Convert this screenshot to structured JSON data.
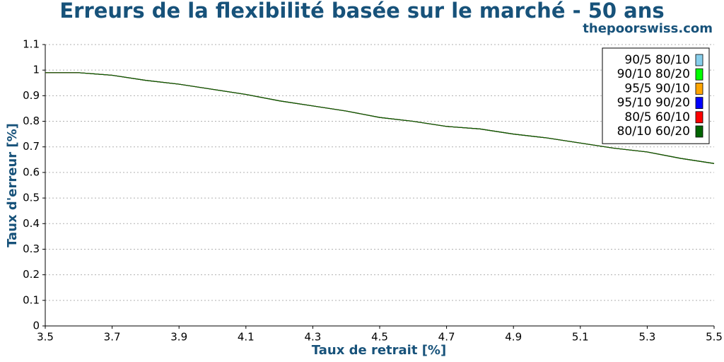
{
  "chart_data": {
    "type": "line",
    "title": "Erreurs de la flexibilité basée sur le marché - 50 ans",
    "subtitle": "thepoorswiss.com",
    "x_label": "Taux de retrait [%]",
    "y_label": "Taux d'erreur [%]",
    "x": [
      3.5,
      3.6,
      3.7,
      3.8,
      3.9,
      4.0,
      4.1,
      4.2,
      4.3,
      4.4,
      4.5,
      4.6,
      4.7,
      4.8,
      4.9,
      5.0,
      5.1,
      5.2,
      5.3,
      5.4,
      5.5
    ],
    "series": [
      {
        "name": "90/5 80/10",
        "color": "#87ceeb",
        "values": [
          0.99,
          0.99,
          0.98,
          0.96,
          0.945,
          0.925,
          0.905,
          0.88,
          0.86,
          0.84,
          0.815,
          0.8,
          0.78,
          0.77,
          0.75,
          0.735,
          0.715,
          0.695,
          0.68,
          0.655,
          0.635
        ]
      },
      {
        "name": "90/10 80/20",
        "color": "#00ff00",
        "values": [
          0.99,
          0.99,
          0.98,
          0.96,
          0.945,
          0.925,
          0.905,
          0.88,
          0.86,
          0.84,
          0.815,
          0.8,
          0.78,
          0.77,
          0.75,
          0.735,
          0.715,
          0.695,
          0.68,
          0.655,
          0.635
        ]
      },
      {
        "name": "95/5 90/10",
        "color": "#ffa500",
        "values": [
          0.99,
          0.99,
          0.98,
          0.96,
          0.945,
          0.925,
          0.905,
          0.88,
          0.86,
          0.84,
          0.815,
          0.8,
          0.78,
          0.77,
          0.75,
          0.735,
          0.715,
          0.695,
          0.68,
          0.655,
          0.635
        ]
      },
      {
        "name": "95/10 90/20",
        "color": "#0000ff",
        "values": [
          0.99,
          0.99,
          0.98,
          0.96,
          0.945,
          0.925,
          0.905,
          0.88,
          0.86,
          0.84,
          0.815,
          0.8,
          0.78,
          0.77,
          0.75,
          0.735,
          0.715,
          0.695,
          0.68,
          0.655,
          0.635
        ]
      },
      {
        "name": "80/5 60/10",
        "color": "#ff0000",
        "values": [
          0.99,
          0.99,
          0.98,
          0.96,
          0.945,
          0.925,
          0.905,
          0.88,
          0.86,
          0.84,
          0.815,
          0.8,
          0.78,
          0.77,
          0.75,
          0.735,
          0.715,
          0.695,
          0.68,
          0.655,
          0.635
        ]
      },
      {
        "name": "80/10 60/20",
        "color": "#006400",
        "values": [
          0.99,
          0.99,
          0.98,
          0.96,
          0.945,
          0.925,
          0.905,
          0.88,
          0.86,
          0.84,
          0.815,
          0.8,
          0.78,
          0.77,
          0.75,
          0.735,
          0.715,
          0.695,
          0.68,
          0.655,
          0.635
        ]
      }
    ],
    "xlim": [
      3.5,
      5.5
    ],
    "xticks": [
      3.5,
      3.7,
      3.9,
      4.1,
      4.3,
      4.5,
      4.7,
      4.9,
      5.1,
      5.3,
      5.5
    ],
    "ylim": [
      0,
      1.1
    ],
    "yticks": [
      0,
      0.1,
      0.2,
      0.3,
      0.4,
      0.5,
      0.6,
      0.7,
      0.8,
      0.9,
      1,
      1.1
    ],
    "grid": true,
    "legend": "upper right"
  }
}
